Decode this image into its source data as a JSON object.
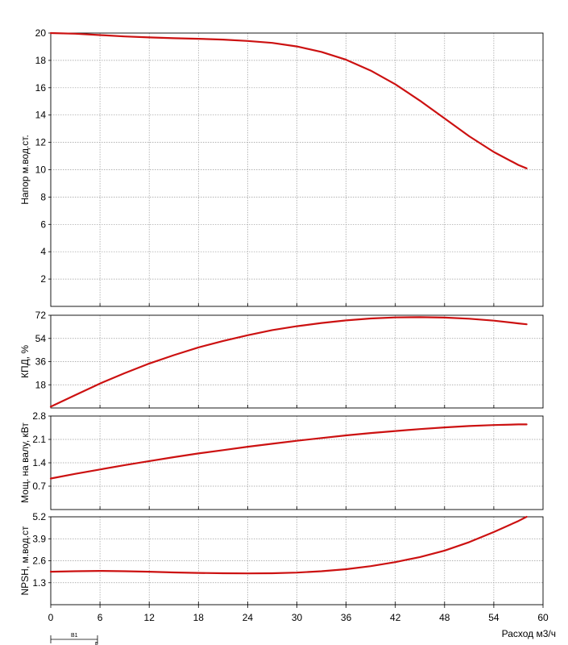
{
  "chart_data": [
    {
      "type": "line",
      "panel": "head",
      "ylabel": "Напор м.вод.ст.",
      "xlim": [
        0,
        60
      ],
      "ylim": [
        0,
        20
      ],
      "yticks": [
        "2",
        "4",
        "6",
        "8",
        "10",
        "12",
        "14",
        "16",
        "18",
        "20"
      ],
      "grid": true,
      "series": [
        {
          "color": "#cc1111",
          "x": [
            0,
            3,
            6,
            9,
            12,
            15,
            18,
            21,
            24,
            27,
            30,
            33,
            36,
            39,
            42,
            45,
            48,
            51,
            54,
            57,
            58
          ],
          "y": [
            20.0,
            19.95,
            19.85,
            19.75,
            19.68,
            19.62,
            19.58,
            19.52,
            19.42,
            19.28,
            19.02,
            18.62,
            18.05,
            17.25,
            16.25,
            15.05,
            13.75,
            12.45,
            11.3,
            10.35,
            10.1
          ]
        }
      ]
    },
    {
      "type": "line",
      "panel": "efficiency",
      "ylabel": "КПД, %",
      "xlim": [
        0,
        60
      ],
      "ylim": [
        0,
        72
      ],
      "yticks": [
        "18",
        "36",
        "54",
        "72"
      ],
      "grid": true,
      "series": [
        {
          "color": "#cc1111",
          "x": [
            0,
            3,
            6,
            9,
            12,
            15,
            18,
            21,
            24,
            27,
            30,
            33,
            36,
            39,
            42,
            45,
            48,
            51,
            54,
            57,
            58
          ],
          "y": [
            1,
            10,
            19,
            27,
            34.5,
            41,
            47,
            52,
            56.5,
            60.5,
            63.5,
            66,
            68,
            69.5,
            70.3,
            70.5,
            70.2,
            69.3,
            67.8,
            65.7,
            65
          ]
        }
      ]
    },
    {
      "type": "line",
      "panel": "power",
      "ylabel": "Мощ. на валу, кВт",
      "xlim": [
        0,
        60
      ],
      "ylim": [
        0,
        2.8
      ],
      "yticks": [
        "0.7",
        "1.4",
        "2.1",
        "2.8"
      ],
      "grid": true,
      "series": [
        {
          "color": "#cc1111",
          "x": [
            0,
            3,
            6,
            9,
            12,
            15,
            18,
            21,
            24,
            27,
            30,
            33,
            36,
            39,
            42,
            45,
            48,
            51,
            54,
            57,
            58
          ],
          "y": [
            0.93,
            1.07,
            1.2,
            1.33,
            1.45,
            1.57,
            1.68,
            1.78,
            1.88,
            1.97,
            2.06,
            2.14,
            2.22,
            2.29,
            2.35,
            2.41,
            2.46,
            2.5,
            2.53,
            2.55,
            2.55
          ]
        }
      ]
    },
    {
      "type": "line",
      "panel": "npsh",
      "ylabel": "NPSH, м.вод.ст",
      "xlabel": "Расход м3/ч",
      "xlim": [
        0,
        60
      ],
      "ylim": [
        0,
        5.2
      ],
      "xticks": [
        "0",
        "6",
        "12",
        "18",
        "24",
        "30",
        "36",
        "42",
        "48",
        "54",
        "60"
      ],
      "yticks": [
        "1.3",
        "2.6",
        "3.9",
        "5.2"
      ],
      "grid": true,
      "series": [
        {
          "color": "#cc1111",
          "x": [
            0,
            3,
            6,
            9,
            12,
            15,
            18,
            21,
            24,
            27,
            30,
            33,
            36,
            39,
            42,
            45,
            48,
            51,
            54,
            57,
            58
          ],
          "y": [
            1.95,
            1.98,
            2.0,
            1.98,
            1.95,
            1.91,
            1.88,
            1.86,
            1.85,
            1.86,
            1.9,
            1.98,
            2.1,
            2.28,
            2.52,
            2.82,
            3.2,
            3.7,
            4.3,
            4.95,
            5.2
          ]
        }
      ]
    }
  ],
  "annotations": {
    "b1_label": "В1",
    "b_label": "в"
  }
}
